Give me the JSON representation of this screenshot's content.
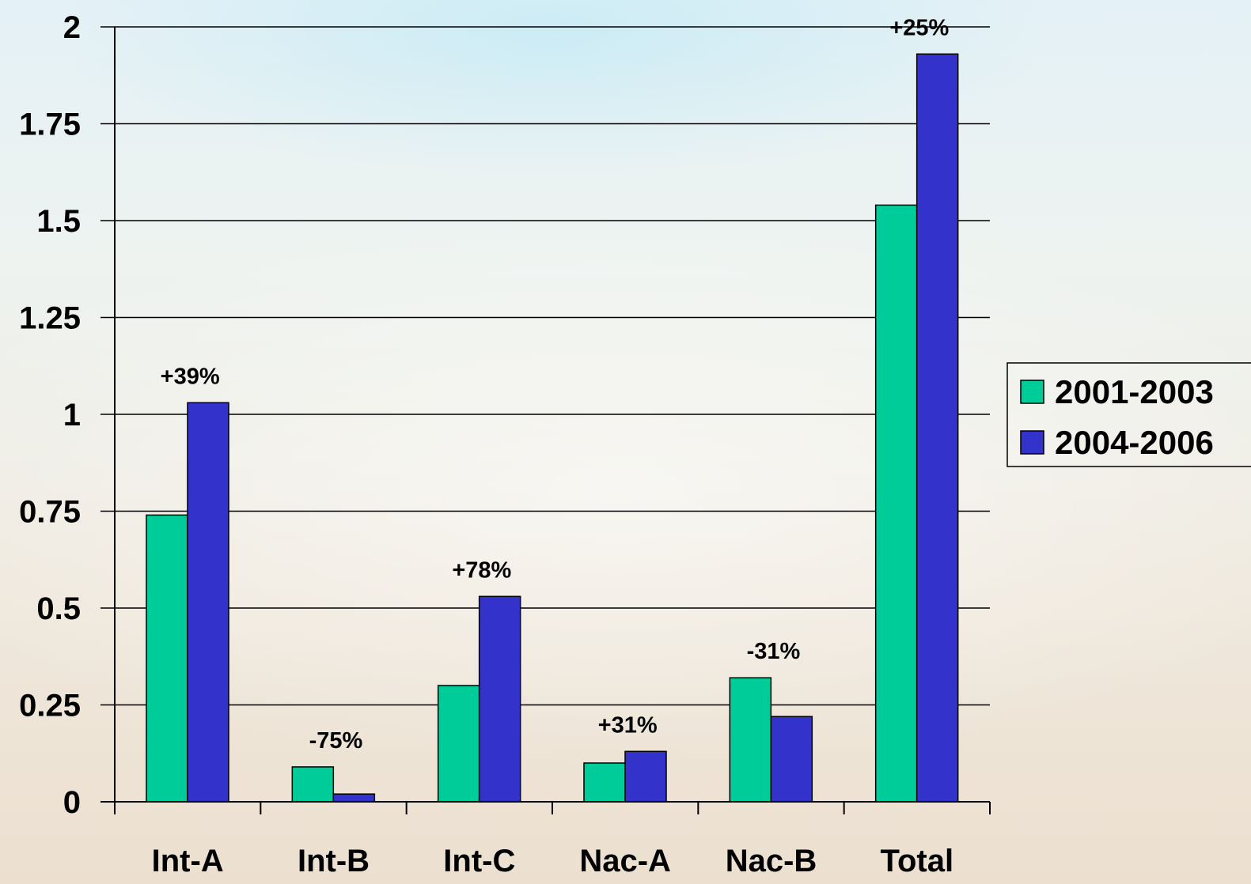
{
  "chart_data": {
    "type": "bar",
    "categories": [
      "Int-A",
      "Int-B",
      "Int-C",
      "Nac-A",
      "Nac-B",
      "Total"
    ],
    "series": [
      {
        "name": "2001-2003",
        "values": [
          0.74,
          0.09,
          0.3,
          0.1,
          0.32,
          1.54
        ]
      },
      {
        "name": "2004-2006",
        "values": [
          1.03,
          0.02,
          0.53,
          0.13,
          0.22,
          1.93
        ]
      }
    ],
    "data_labels": [
      "+39%",
      "-75%",
      "+78%",
      "+31%",
      "-31%",
      "+25%"
    ],
    "ylim": [
      0,
      2
    ],
    "yticks": [
      0,
      0.25,
      0.5,
      0.75,
      1,
      1.25,
      1.5,
      1.75,
      2
    ],
    "ytick_labels": [
      "0",
      "0.25",
      "0.5",
      "0.75",
      "1",
      "1.25",
      "1.5",
      "1.75",
      "2"
    ],
    "grid": true,
    "legend_position": "right",
    "colors": {
      "series_1": "#00CC99",
      "series_2": "#3333CC"
    }
  }
}
